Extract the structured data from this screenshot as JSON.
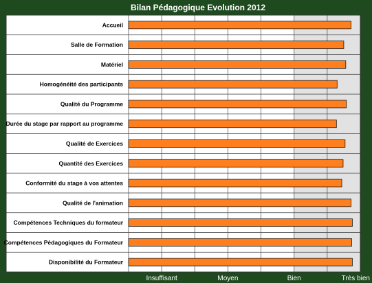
{
  "chart_data": {
    "type": "bar",
    "orientation": "horizontal",
    "title": "Bilan Pédagogique Evolution 2012",
    "categories": [
      "Accueil",
      "Salle de Formation",
      "Matériel",
      "Homogénéité des participants",
      "Qualité du Programme",
      "Durée du stage par rapport au programme",
      "Qualité de Exercices",
      "Quantité des Exercices",
      "Conformité du stage à vos attentes",
      "Qualité de l'animation",
      "Compétences Techniques du formateur",
      "Compétences Pédagogiques du Formateur",
      "Disponibilité du Formateur"
    ],
    "values": [
      3.86,
      3.75,
      3.78,
      3.65,
      3.79,
      3.64,
      3.77,
      3.74,
      3.72,
      3.86,
      3.88,
      3.87,
      3.88
    ],
    "xlim": [
      0.5,
      4.0
    ],
    "x_ticks": [
      1,
      2,
      3,
      4
    ],
    "x_tick_labels": [
      "Insuffisant",
      "Moyen",
      "Bien",
      "Très bien"
    ],
    "grid": true,
    "colors": {
      "bar": "#ff7f1e",
      "bar_outline": "#1a1a1a",
      "page_background": "#1f4a1f",
      "plot_background": "#ffffff",
      "plot_shade": "#e2e2e2",
      "grid": "#555555"
    }
  }
}
